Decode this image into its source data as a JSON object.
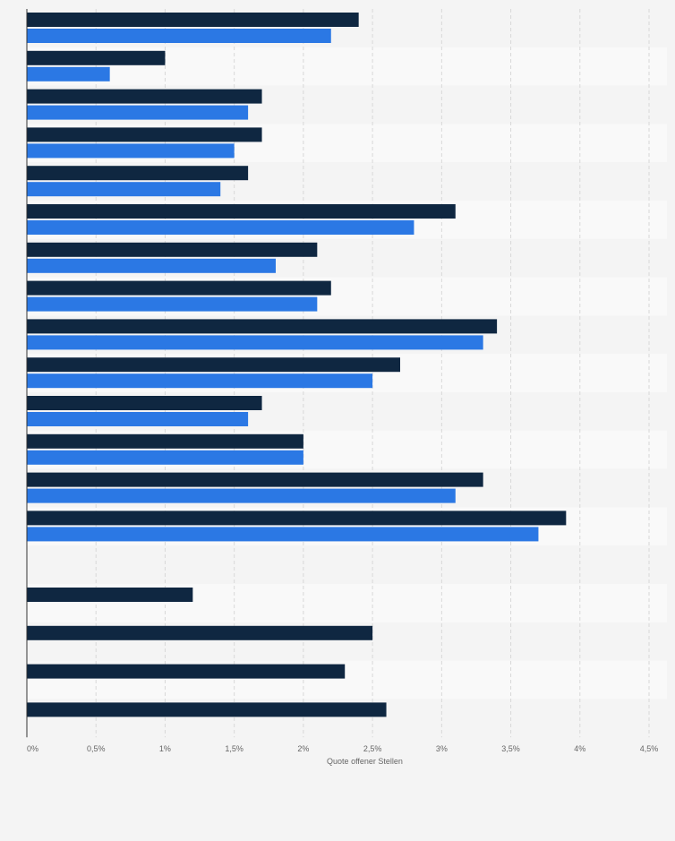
{
  "chart_data": {
    "type": "bar",
    "orientation": "horizontal",
    "xlabel": "Quote offener Stellen",
    "ylabel": "",
    "xlim": [
      0,
      4.5
    ],
    "x_ticks": [
      0,
      0.5,
      1,
      1.5,
      2,
      2.5,
      3,
      3.5,
      4,
      4.5
    ],
    "x_tick_labels": [
      "0%",
      "0,5%",
      "1%",
      "1,5%",
      "2%",
      "2,5%",
      "3%",
      "3,5%",
      "4%",
      "4,5%"
    ],
    "grid": true,
    "categories": [
      "",
      "",
      "",
      "",
      "",
      "",
      "",
      "",
      "",
      "",
      "",
      "",
      "",
      "",
      "",
      "",
      "",
      "",
      ""
    ],
    "series": [
      {
        "color": "#0f2741",
        "values": [
          2.4,
          1.0,
          1.7,
          1.7,
          1.6,
          3.1,
          2.1,
          2.2,
          3.4,
          2.7,
          1.7,
          2.0,
          3.3,
          3.9,
          null,
          1.2,
          2.5,
          2.3,
          2.6
        ]
      },
      {
        "color": "#2b78e4",
        "values": [
          2.2,
          0.6,
          1.6,
          1.5,
          1.4,
          2.8,
          1.8,
          2.1,
          3.3,
          2.5,
          1.6,
          2.0,
          3.1,
          3.7,
          null,
          null,
          null,
          null,
          null
        ]
      }
    ]
  }
}
